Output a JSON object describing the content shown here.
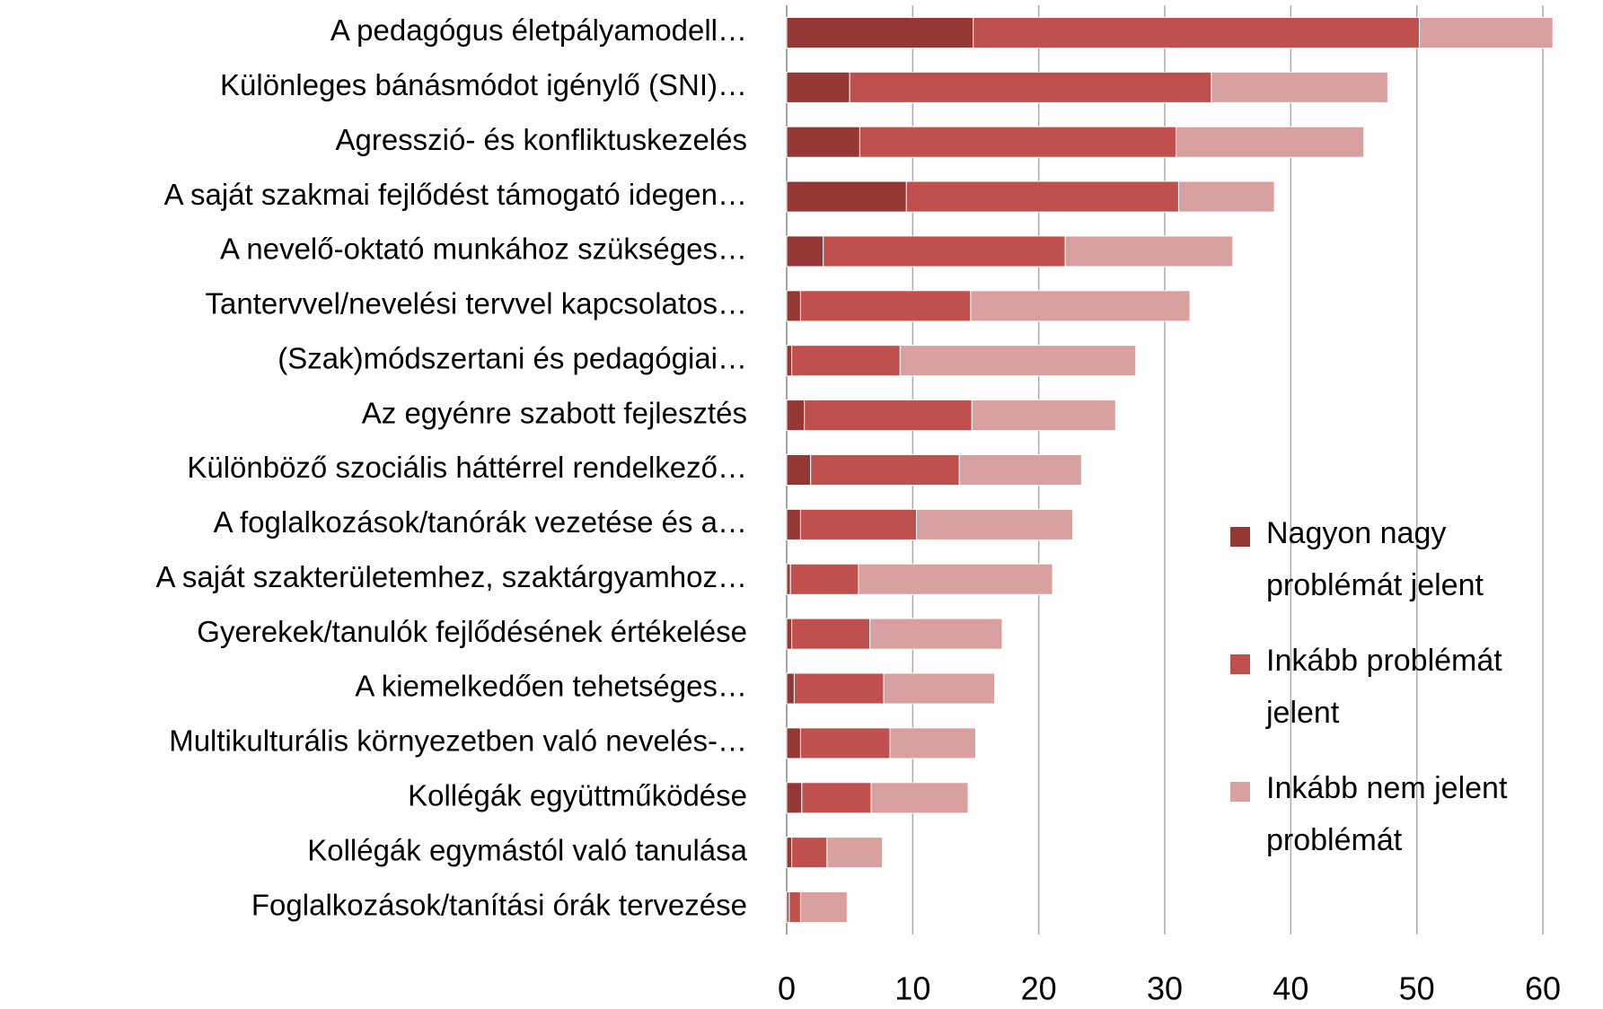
{
  "chart_data": {
    "type": "stacked-barh",
    "categories": [
      "A pedagógus életpályamodell…",
      "Különleges bánásmódot igénylő (SNI)…",
      "Agresszió- és konfliktuskezelés",
      "A saját szakmai fejlődést támogató idegen…",
      "A nevelő-oktató munkához szükséges…",
      "Tantervvel/nevelési tervvel kapcsolatos…",
      "(Szak)módszertani és pedagógiai…",
      "Az egyénre szabott fejlesztés",
      "Különböző szociális háttérrel rendelkező…",
      "A foglalkozások/tanórák vezetése és a…",
      "A saját szakterületemhez, szaktárgyamhoz…",
      "Gyerekek/tanulók fejlődésének értékelése",
      "A kiemelkedően tehetséges…",
      "Multikulturális környezetben való nevelés-…",
      "Kollégák együttműködése",
      "Kollégák egymástól való tanulása",
      "Foglalkozások/tanítási órák tervezése"
    ],
    "series": [
      {
        "name": "Nagyon nagy problémát jelent",
        "color": "#953735",
        "values": [
          14.8,
          5.0,
          5.8,
          9.5,
          2.9,
          1.1,
          0.4,
          1.4,
          1.9,
          1.1,
          0.3,
          0.4,
          0.6,
          1.1,
          1.2,
          0.4,
          0.2
        ]
      },
      {
        "name": "Inkább problémát jelent",
        "color": "#c0504d",
        "values": [
          35.4,
          28.7,
          25.1,
          21.6,
          19.2,
          13.5,
          8.6,
          13.3,
          11.8,
          9.2,
          5.4,
          6.2,
          7.1,
          7.1,
          5.5,
          2.8,
          0.9
        ]
      },
      {
        "name": "Inkább nem jelent problémát",
        "color": "#d9a0a0",
        "values": [
          10.6,
          14.0,
          14.9,
          7.6,
          13.3,
          17.4,
          18.7,
          11.4,
          9.7,
          12.4,
          15.4,
          10.5,
          8.8,
          6.8,
          7.7,
          4.4,
          3.7
        ]
      }
    ],
    "xlim": [
      0,
      60
    ],
    "xticks": [
      0,
      10,
      20,
      30,
      40,
      50,
      60
    ],
    "grid": true,
    "legend": "right"
  }
}
